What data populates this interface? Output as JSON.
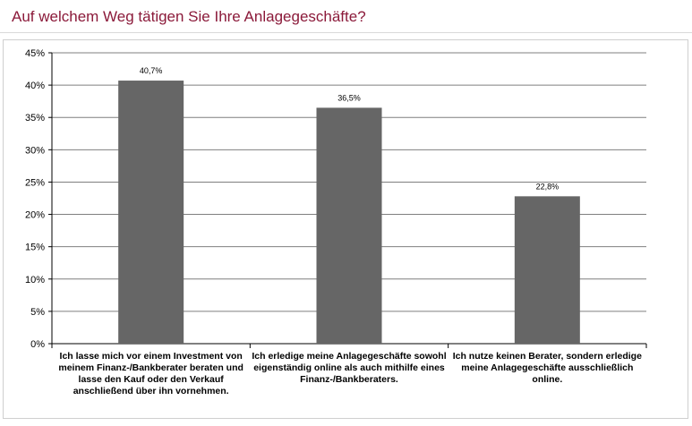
{
  "title": "Auf welchem Weg tätigen Sie Ihre Anlagegeschäfte?",
  "colors": {
    "bar": "#666666",
    "title": "#8b1a3a",
    "grid": "#7f7f7f"
  },
  "chart_data": {
    "type": "bar",
    "title": "Auf welchem Weg tätigen Sie Ihre Anlagegeschäfte?",
    "categories": [
      "Ich lasse mich vor einem Investment von meinem Finanz-/Bankberater beraten und lasse den Kauf oder den Verkauf anschließend über ihn vornehmen.",
      "Ich erledige meine Anlagegeschäfte sowohl eigenständig online als auch mithilfe eines Finanz-/Bankberaters.",
      "Ich nutze keinen Berater, sondern erledige meine Anlagegeschäfte ausschließlich online."
    ],
    "values": [
      40.7,
      36.5,
      22.8
    ],
    "data_labels": [
      "40,7%",
      "36,5%",
      "22,8%"
    ],
    "ylim": [
      0,
      45
    ],
    "yticks": [
      0,
      5,
      10,
      15,
      20,
      25,
      30,
      35,
      40,
      45
    ],
    "ytick_labels": [
      "0%",
      "5%",
      "10%",
      "15%",
      "20%",
      "25%",
      "30%",
      "35%",
      "40%",
      "45%"
    ],
    "grid": true,
    "xlabel": "",
    "ylabel": ""
  }
}
